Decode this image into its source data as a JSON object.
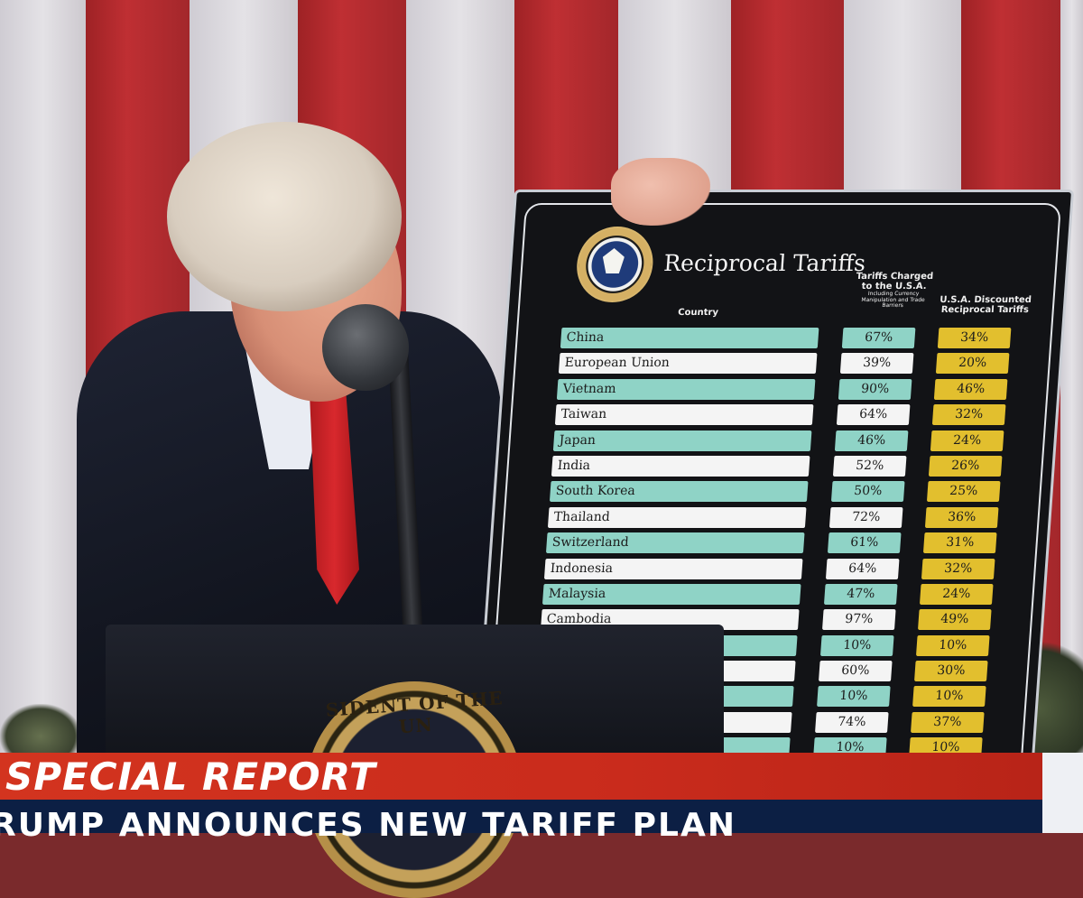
{
  "board": {
    "title": "Reciprocal Tariffs",
    "header_country": "Country",
    "header_charged": "Tariffs Charged to the U.S.A.",
    "header_charged_note": "Including Currency Manipulation and Trade Barriers",
    "header_discounted": "U.S.A. Discounted Reciprocal Tariffs",
    "rows": [
      {
        "country": "China",
        "charged": "67%",
        "discounted": "34%"
      },
      {
        "country": "European Union",
        "charged": "39%",
        "discounted": "20%"
      },
      {
        "country": "Vietnam",
        "charged": "90%",
        "discounted": "46%"
      },
      {
        "country": "Taiwan",
        "charged": "64%",
        "discounted": "32%"
      },
      {
        "country": "Japan",
        "charged": "46%",
        "discounted": "24%"
      },
      {
        "country": "India",
        "charged": "52%",
        "discounted": "26%"
      },
      {
        "country": "South Korea",
        "charged": "50%",
        "discounted": "25%"
      },
      {
        "country": "Thailand",
        "charged": "72%",
        "discounted": "36%"
      },
      {
        "country": "Switzerland",
        "charged": "61%",
        "discounted": "31%"
      },
      {
        "country": "Indonesia",
        "charged": "64%",
        "discounted": "32%"
      },
      {
        "country": "Malaysia",
        "charged": "47%",
        "discounted": "24%"
      },
      {
        "country": "Cambodia",
        "charged": "97%",
        "discounted": "49%"
      },
      {
        "country": "",
        "charged": "10%",
        "discounted": "10%"
      },
      {
        "country": "",
        "charged": "60%",
        "discounted": "30%"
      },
      {
        "country": "",
        "charged": "10%",
        "discounted": "10%"
      },
      {
        "country": "",
        "charged": "74%",
        "discounted": "37%"
      },
      {
        "country": "",
        "charged": "10%",
        "discounted": "10%"
      }
    ]
  },
  "podium": {
    "seal_text": "SIDENT OF THE UN"
  },
  "banner": {
    "label": "SPECIAL REPORT",
    "ticker": "RUMP ANNOUNCES NEW TARIFF PLAN"
  },
  "colors": {
    "teal_row": "#8fd3c6",
    "white_row": "#f4f4f4",
    "gold_cell": "#e2bf2e",
    "banner_red": "#c92b1c",
    "ticker_navy": "#0c1f44"
  }
}
